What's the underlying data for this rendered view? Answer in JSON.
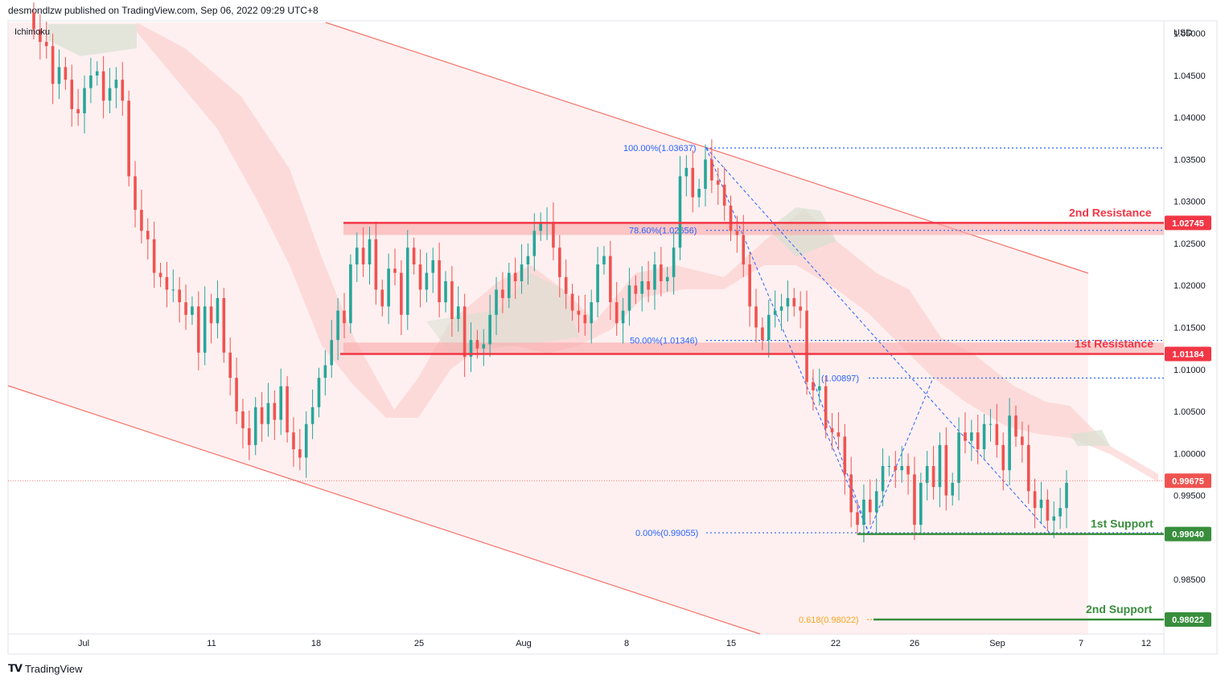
{
  "header": {
    "publisher": "desmondlzw published on TradingView.com, Sep 06, 2022 09:29 UTC+8",
    "indicator": "Ichimoku"
  },
  "footer": {
    "brand": "TradingView",
    "logo_icon": "tradingview-logo-icon"
  },
  "colors": {
    "bull": "#26a69a",
    "bear": "#ef5350",
    "resistance": "#f23645",
    "support": "#388e3c",
    "fib": "#2962ff",
    "fib618": "#f5a623",
    "channel": "#f4726a",
    "cloud_bear": "#fccbcb",
    "cloud_bull": "#d7e0d2"
  },
  "chart_data": {
    "type": "candlestick",
    "symbol_currency": "USD",
    "y_axis": {
      "range": [
        0.9785,
        1.0515
      ],
      "ticks": [
        "1.05000",
        "1.04500",
        "1.04000",
        "1.03500",
        "1.03000",
        "1.02500",
        "1.02000",
        "1.01500",
        "1.01000",
        "1.00500",
        "1.00000",
        "0.99500",
        "0.98500"
      ],
      "tick_values": [
        1.05,
        1.045,
        1.04,
        1.035,
        1.03,
        1.025,
        1.02,
        1.015,
        1.01,
        1.005,
        1.0,
        0.995,
        0.985
      ]
    },
    "x_axis": {
      "ticks": [
        "Jul",
        "11",
        "18",
        "25",
        "Aug",
        "8",
        "15",
        "22",
        "26",
        "Sep",
        "7",
        "12"
      ]
    },
    "current_price": {
      "value": 0.99675,
      "label": "0.99675"
    },
    "levels": [
      {
        "name": "2nd Resistance",
        "value": 1.02745,
        "label": "1.02745",
        "kind": "resistance"
      },
      {
        "name": "1st Resistance",
        "value": 1.01184,
        "label": "1.01184",
        "kind": "resistance"
      },
      {
        "name": "1st Support",
        "value": 0.9904,
        "label": "0.99040",
        "kind": "support"
      },
      {
        "name": "2nd Support",
        "value": 0.98022,
        "label": "0.98022",
        "kind": "support"
      }
    ],
    "fibonacci": [
      {
        "label": "100.00%(1.03637)",
        "value": 1.03637
      },
      {
        "label": "78.60%(1.02656)",
        "value": 1.02656
      },
      {
        "label": "50.00%(1.01346)",
        "value": 1.01346
      },
      {
        "label": "(1.00897)",
        "value": 1.00897
      },
      {
        "label": "0.00%(0.99055)",
        "value": 0.99055
      }
    ],
    "fib_extension": {
      "label": "0.618(0.98022)",
      "value": 0.98022
    },
    "close_series": [
      1.0505,
      1.049,
      1.0485,
      1.044,
      1.046,
      1.0445,
      1.041,
      1.0405,
      1.0435,
      1.045,
      1.0455,
      1.042,
      1.0435,
      1.0445,
      1.042,
      1.033,
      1.029,
      1.0265,
      1.0255,
      1.0215,
      1.021,
      1.0195,
      1.0195,
      1.018,
      1.0165,
      1.0175,
      1.012,
      1.0175,
      1.0155,
      1.0185,
      1.012,
      1.009,
      1.005,
      1.003,
      1.001,
      1.0055,
      1.0035,
      1.006,
      1.004,
      1.008,
      1.0025,
      1.0005,
      0.9995,
      1.0035,
      1.0055,
      1.009,
      1.0105,
      1.0135,
      1.017,
      1.0155,
      1.0225,
      1.0245,
      1.0225,
      1.0255,
      1.0195,
      1.0175,
      1.022,
      1.0215,
      1.0165,
      1.0245,
      1.0225,
      1.0195,
      1.0215,
      1.023,
      1.018,
      1.0205,
      1.016,
      1.0175,
      1.0115,
      1.0135,
      1.0125,
      1.013,
      1.0165,
      1.0195,
      1.0185,
      1.0215,
      1.0205,
      1.0225,
      1.0235,
      1.0265,
      1.0275,
      1.0275,
      1.0245,
      1.021,
      1.019,
      1.017,
      1.0165,
      1.0155,
      1.018,
      1.0225,
      1.0235,
      1.018,
      1.0155,
      1.017,
      1.02,
      1.019,
      1.0205,
      1.0195,
      1.0225,
      1.0205,
      1.021,
      1.0245,
      1.033,
      1.034,
      1.0305,
      1.0315,
      1.035,
      1.0325,
      1.032,
      1.0295,
      1.0265,
      1.026,
      1.0225,
      1.0175,
      1.015,
      1.0135,
      1.0165,
      1.017,
      1.0175,
      1.0185,
      1.0175,
      1.017,
      1.0085,
      1.0075,
      1.008,
      1.003,
      1.0025,
      1.002,
      0.9975,
      0.993,
      0.9915,
      0.9945,
      0.993,
      0.9955,
      0.9985,
      0.9985,
      0.998,
      0.9985,
      0.9975,
      0.9915,
      0.9965,
      0.9985,
      0.996,
      1.001,
      0.995,
      0.9965,
      1.0025,
      1.0015,
      1.0025,
      1.0005,
      1.0035,
      1.0035,
      1.001,
      0.998,
      1.0045,
      1.002,
      1.001,
      0.9955,
      0.9935,
      0.9945,
      0.992,
      0.9925,
      0.9935,
      0.9965
    ]
  }
}
